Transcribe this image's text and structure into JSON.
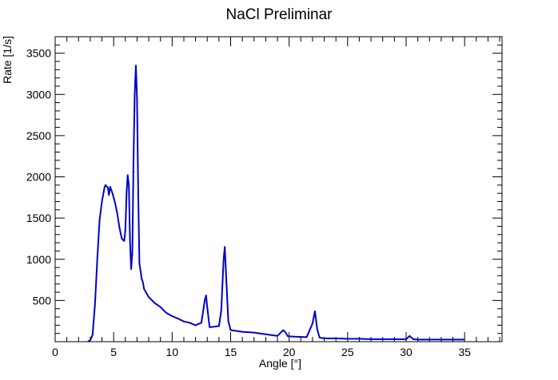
{
  "chart_data": {
    "type": "line",
    "title": "NaCl Preliminar",
    "xlabel": "Angle [°]",
    "ylabel": "Rate [1/s]",
    "xlim": [
      0,
      38.2
    ],
    "ylim": [
      0,
      3700
    ],
    "x_ticks": [
      0,
      5,
      10,
      15,
      20,
      25,
      30,
      35
    ],
    "x_tick_labels": [
      "0",
      "5",
      "10",
      "15",
      "20",
      "25",
      "30",
      "35"
    ],
    "y_ticks": [
      500,
      1000,
      1500,
      2000,
      2500,
      3000,
      3500
    ],
    "y_tick_labels": [
      "500",
      "1000",
      "1500",
      "2000",
      "2500",
      "3000",
      "3500"
    ],
    "grid": false,
    "line_color": "#0000cc",
    "series": [
      {
        "x": [
          2.8,
          3.0,
          3.2,
          3.4,
          3.6,
          3.8,
          4.0,
          4.2,
          4.3,
          4.5,
          4.6,
          4.7,
          4.9,
          5.1,
          5.3,
          5.5,
          5.7,
          5.9,
          6.0,
          6.1,
          6.2,
          6.3,
          6.4,
          6.5,
          6.6,
          6.7,
          6.8,
          6.9,
          7.0,
          7.1,
          7.2,
          7.3,
          7.4,
          7.5,
          7.6,
          7.8,
          8.0,
          8.5,
          9.0,
          9.5,
          10.0,
          10.5,
          11.0,
          11.5,
          12.0,
          12.5,
          12.8,
          12.9,
          13.0,
          13.2,
          13.5,
          14.0,
          14.2,
          14.4,
          14.5,
          14.6,
          14.8,
          15.0,
          16.0,
          17.0,
          18.0,
          19.0,
          19.5,
          19.7,
          19.9,
          20.5,
          21.5,
          22.0,
          22.2,
          22.4,
          22.6,
          23.0,
          24.0,
          25.0,
          26.0,
          27.0,
          28.0,
          29.0,
          30.0,
          30.3,
          30.6,
          31.0,
          32.0,
          33.0,
          34.0,
          35.0
        ],
        "y": [
          0,
          20,
          80,
          450,
          1000,
          1480,
          1700,
          1860,
          1900,
          1870,
          1780,
          1880,
          1800,
          1700,
          1560,
          1380,
          1250,
          1220,
          1350,
          1800,
          2020,
          1900,
          1200,
          880,
          1100,
          2200,
          3000,
          3350,
          2950,
          1800,
          950,
          860,
          760,
          720,
          640,
          590,
          540,
          470,
          420,
          350,
          310,
          280,
          245,
          230,
          200,
          230,
          510,
          560,
          420,
          175,
          180,
          190,
          380,
          1000,
          1150,
          850,
          250,
          140,
          120,
          110,
          90,
          70,
          140,
          110,
          65,
          60,
          55,
          220,
          370,
          150,
          50,
          40,
          40,
          35,
          35,
          30,
          30,
          30,
          30,
          70,
          30,
          25,
          25,
          25,
          25,
          25
        ]
      }
    ]
  }
}
